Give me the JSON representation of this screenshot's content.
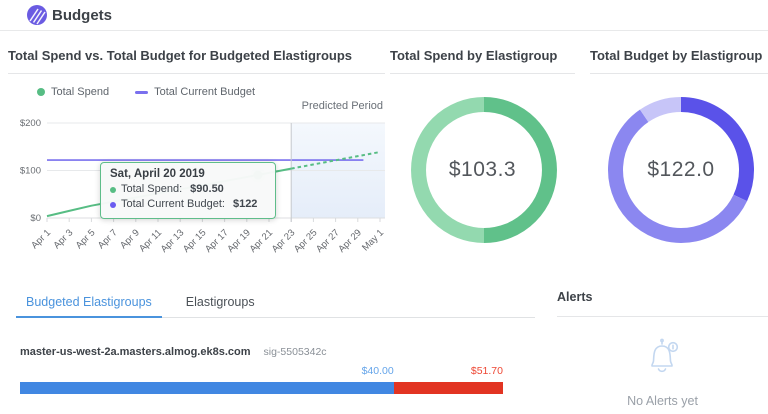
{
  "header": {
    "title": "Budgets"
  },
  "ui": {
    "colors": {
      "accent_purple": "#6a5be2",
      "tab_active": "#4a93dd",
      "text_dark": "#3d4248",
      "text_gray": "#6a7077",
      "text_light": "#9aa0a8",
      "divider": "#e5e6e8",
      "bell": "#c3d7f0"
    },
    "tabs": {
      "items": [
        {
          "label": "Budgeted Elastigroups",
          "active": true
        },
        {
          "label": "Elastigroups",
          "active": false
        }
      ]
    },
    "alerts": {
      "title": "Alerts",
      "empty_text": "No Alerts yet"
    }
  },
  "chart_data": [
    {
      "id": "total-spend-vs-budget",
      "type": "line",
      "title": "Total Spend vs. Total Budget for Budgeted Elastigroups",
      "ylim": [
        0,
        200
      ],
      "grid": "horizontal",
      "legend_position": "top-left",
      "y_ticks": [
        {
          "label": "$0",
          "value": 0
        },
        {
          "label": "$100",
          "value": 100
        },
        {
          "label": "$200",
          "value": 200
        }
      ],
      "x_ticks": [
        {
          "day": 1,
          "label": "Apr 1"
        },
        {
          "day": 3,
          "label": "Apr 3"
        },
        {
          "day": 5,
          "label": "Apr 5"
        },
        {
          "day": 7,
          "label": "Apr 7"
        },
        {
          "day": 9,
          "label": "Apr 9"
        },
        {
          "day": 11,
          "label": "Apr 11"
        },
        {
          "day": 13,
          "label": "Apr 13"
        },
        {
          "day": 15,
          "label": "Apr 15"
        },
        {
          "day": 17,
          "label": "Apr 17"
        },
        {
          "day": 19,
          "label": "Apr 19"
        },
        {
          "day": 21,
          "label": "Apr 21"
        },
        {
          "day": 23,
          "label": "Apr 23"
        },
        {
          "day": 25,
          "label": "Apr 25"
        },
        {
          "day": 27,
          "label": "Apr 27"
        },
        {
          "day": 29,
          "label": "Apr 29"
        },
        {
          "day": 31,
          "label": "May 1"
        }
      ],
      "series": [
        {
          "name": "Total Spend",
          "color": "#57bd84",
          "style": "solid",
          "points": [
            [
              1,
              4
            ],
            [
              3,
              15
            ],
            [
              5,
              26
            ],
            [
              20,
              90.5
            ],
            [
              23,
              104
            ]
          ]
        },
        {
          "name": "Total Spend (predicted)",
          "color": "#57bd84",
          "style": "dashed",
          "points": [
            [
              23,
              104
            ],
            [
              31,
              139
            ]
          ]
        },
        {
          "name": "Total Current Budget",
          "color": "#7a70ee",
          "style": "solid",
          "points": [
            [
              1,
              122
            ],
            [
              29.5,
              122
            ]
          ]
        }
      ],
      "predicted_period": {
        "label": "Predicted Period",
        "start_day": 23,
        "end_day": 31.5
      },
      "highlight_point": {
        "day": 20,
        "value": 90.5
      },
      "tooltip": {
        "title": "Sat, April 20 2019",
        "rows": [
          {
            "label": "Total Spend:",
            "value": "$90.50",
            "color": "#57bd84"
          },
          {
            "label": "Total Current Budget:",
            "value": "$122",
            "color": "#6a5cf0"
          }
        ]
      }
    },
    {
      "id": "total-spend-by-elastigroup",
      "type": "pie",
      "title": "Total Spend by Elastigroup",
      "center_value": "$103.3",
      "total": 103.3,
      "segments": [
        {
          "fraction": 0.5,
          "color": "#60c18a"
        },
        {
          "fraction": 0.5,
          "color": "#93d9af"
        }
      ]
    },
    {
      "id": "total-budget-by-elastigroup",
      "type": "pie",
      "title": "Total Budget by Elastigroup",
      "center_value": "$122.0",
      "total": 122.0,
      "segments": [
        {
          "fraction": 0.32,
          "color": "#5a52e9"
        },
        {
          "fraction": 0.585,
          "color": "#8b87f0"
        },
        {
          "fraction": 0.095,
          "color": "#c7c5f8"
        }
      ]
    },
    {
      "id": "budgeted-elastigroup-row",
      "type": "bar",
      "row_label": "master-us-west-2a.masters.almog.ek8s.com",
      "row_sub": "sig-5505342c",
      "segments": [
        {
          "label": "$40.00",
          "value": 40.0,
          "color": "#4187e2",
          "label_color": "#65a5ea"
        },
        {
          "label": "$51.70",
          "value": 11.7,
          "color": "#e23422",
          "label_color": "#ee4734"
        }
      ]
    }
  ]
}
